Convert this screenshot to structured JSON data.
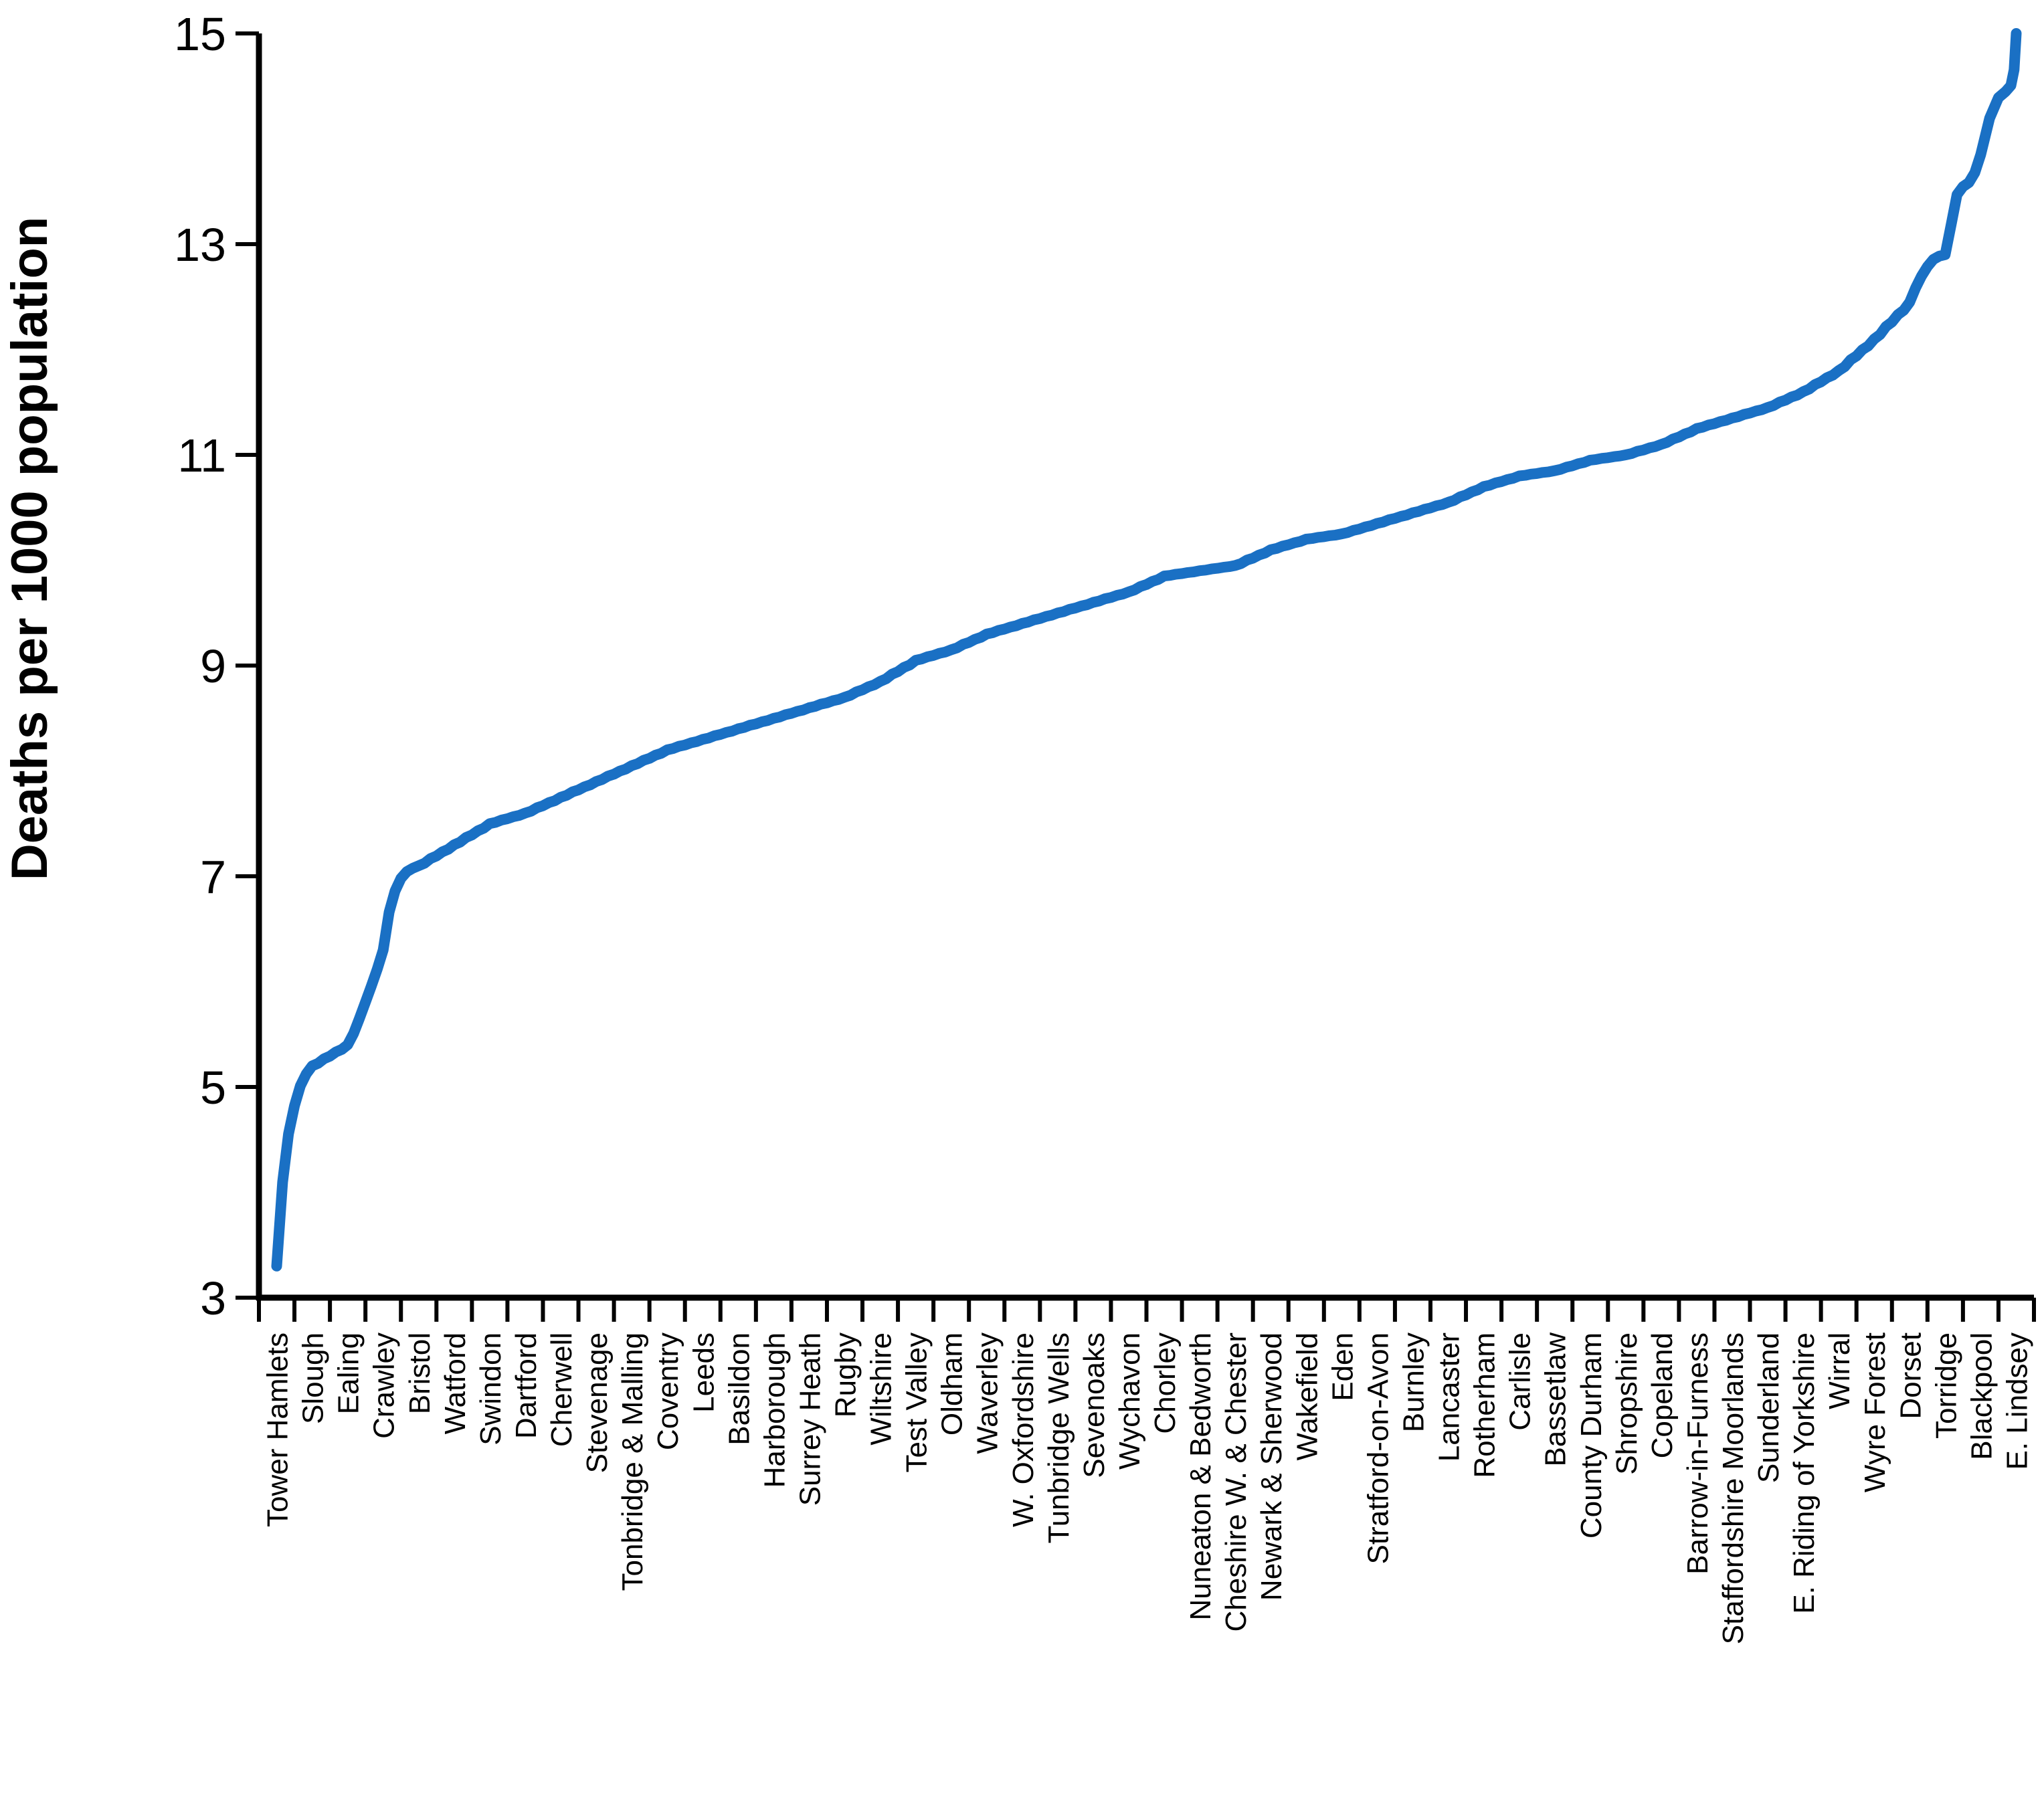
{
  "chart_data": {
    "type": "line",
    "title": "",
    "xlabel": "",
    "ylabel": "Deaths per 1000 population",
    "ylim": [
      3,
      15
    ],
    "yticks": [
      3,
      5,
      7,
      9,
      11,
      13,
      15
    ],
    "grid": false,
    "legend": "none",
    "line_color": "#1a70c4",
    "axis_color": "#000000",
    "categories": [
      "Tower Hamlets",
      "Slough",
      "Ealing",
      "Crawley",
      "Bristol",
      "Watford",
      "Swindon",
      "Dartford",
      "Cherwell",
      "Stevenage",
      "Tonbridge & Malling",
      "Coventry",
      "Leeds",
      "Basildon",
      "Harborough",
      "Surrey Heath",
      "Rugby",
      "Wiltshire",
      "Test Valley",
      "Oldham",
      "Waverley",
      "W. Oxfordshire",
      "Tunbridge Wells",
      "Sevenoaks",
      "Wychavon",
      "Chorley",
      "Nuneaton & Bedworth",
      "Cheshire W. & Chester",
      "Newark & Sherwood",
      "Wakefield",
      "Eden",
      "Stratford-on-Avon",
      "Burnley",
      "Lancaster",
      "Rotherham",
      "Carlisle",
      "Bassetlaw",
      "County Durham",
      "Shropshire",
      "Copeland",
      "Barrow-in-Furness",
      "Staffordshire Moorlands",
      "Sunderland",
      "E. Riding of Yorkshire",
      "Wirral",
      "Wyre Forest",
      "Dorset",
      "Torridge",
      "Blackpool",
      "E. Lindsey"
    ],
    "values": [
      3.3,
      5.2,
      5.4,
      6.3,
      7.1,
      7.3,
      7.5,
      7.6,
      7.75,
      7.9,
      8.05,
      8.2,
      8.3,
      8.4,
      8.5,
      8.6,
      8.7,
      8.85,
      9.05,
      9.15,
      9.3,
      9.4,
      9.5,
      9.6,
      9.7,
      9.85,
      9.9,
      9.95,
      10.1,
      10.2,
      10.25,
      10.35,
      10.45,
      10.55,
      10.7,
      10.8,
      10.85,
      10.95,
      11.0,
      11.1,
      11.25,
      11.35,
      11.45,
      11.6,
      11.8,
      12.1,
      12.45,
      12.9,
      13.85,
      15.0
    ]
  }
}
